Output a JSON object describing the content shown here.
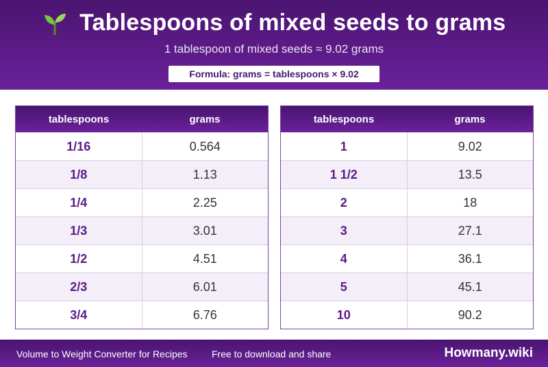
{
  "header": {
    "title": "Tablespoons of mixed seeds to grams",
    "subtitle": "1 tablespoon of mixed seeds ≈ 9.02 grams",
    "formula": "Formula: grams = tablespoons × 9.02",
    "icon": "sprout-icon"
  },
  "tables": [
    {
      "columns": [
        "tablespoons",
        "grams"
      ],
      "rows": [
        [
          "1/16",
          "0.564"
        ],
        [
          "1/8",
          "1.13"
        ],
        [
          "1/4",
          "2.25"
        ],
        [
          "1/3",
          "3.01"
        ],
        [
          "1/2",
          "4.51"
        ],
        [
          "2/3",
          "6.01"
        ],
        [
          "3/4",
          "6.76"
        ]
      ]
    },
    {
      "columns": [
        "tablespoons",
        "grams"
      ],
      "rows": [
        [
          "1",
          "9.02"
        ],
        [
          "1 1/2",
          "13.5"
        ],
        [
          "2",
          "18"
        ],
        [
          "3",
          "27.1"
        ],
        [
          "4",
          "36.1"
        ],
        [
          "5",
          "45.1"
        ],
        [
          "10",
          "90.2"
        ]
      ]
    }
  ],
  "footer": {
    "converter": "Volume to Weight Converter for Recipes",
    "note": "Free to download and share",
    "brand": "Howmany.wiki"
  },
  "colors": {
    "brand_purple": "#4a1470",
    "accent_purple": "#6a219a",
    "alt_row": "#f3eef8"
  }
}
